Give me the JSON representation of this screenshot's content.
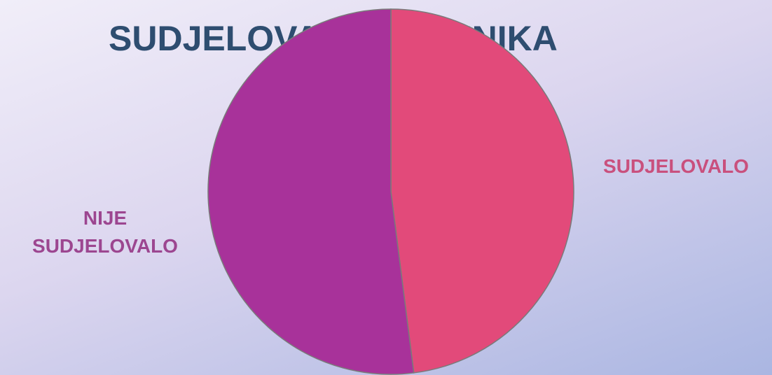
{
  "chart_data": {
    "type": "pie",
    "title": "SUDJELOVANJE UČENIKA",
    "categories": [
      "SUDJELOVALO",
      "NIJE SUDJELOVALO"
    ],
    "values": [
      48,
      52
    ],
    "colors": [
      "#e24a7a",
      "#a8329a"
    ],
    "label_colors": [
      "#c9507d",
      "#9c4690"
    ]
  }
}
